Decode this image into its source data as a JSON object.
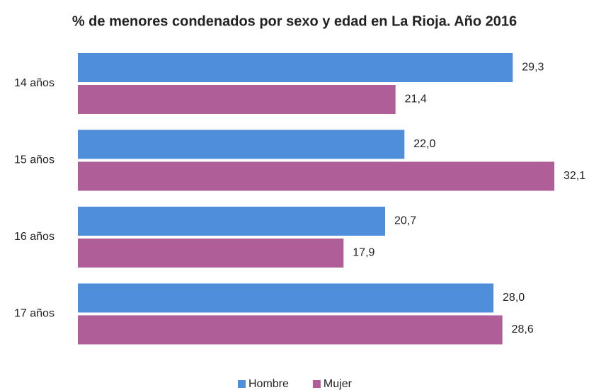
{
  "chart_data": {
    "type": "hbar",
    "title": "% de menores condenados por sexo y edad en La Rioja. Año 2016",
    "categories": [
      "14 años",
      "15 años",
      "16 años",
      "17 años"
    ],
    "series": [
      {
        "name": "Hombre",
        "color": "#4f8edb",
        "values": [
          29.3,
          22.0,
          20.7,
          28.0
        ],
        "value_labels": [
          "29,3",
          "22,0",
          "20,7",
          "28,0"
        ]
      },
      {
        "name": "Mujer",
        "color": "#b05e97",
        "values": [
          21.4,
          32.1,
          17.9,
          28.6
        ],
        "value_labels": [
          "21,4",
          "32,1",
          "17,9",
          "28,6"
        ]
      }
    ],
    "legend": "bottom"
  }
}
